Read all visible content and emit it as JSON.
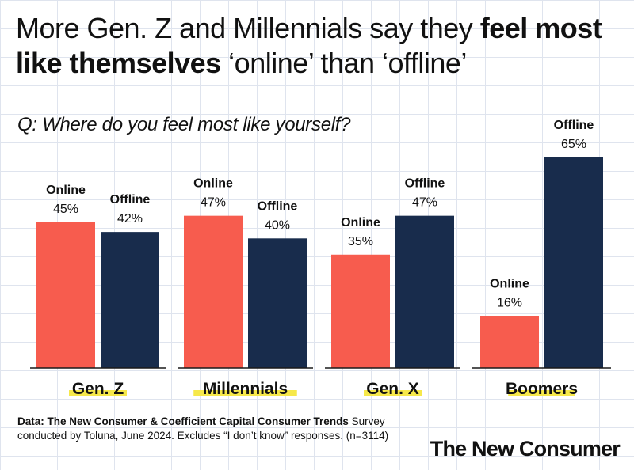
{
  "title": {
    "part1": "More Gen. Z and Millennials say they ",
    "bold1": "feel most like themselves",
    "part2": " ‘online’ than ‘offline’"
  },
  "question": "Q: Where do you feel most like yourself?",
  "footnote": {
    "bold": "Data: The New Consumer & Coefficient Capital Consumer Trends",
    "rest": " Survey conducted by Toluna, June 2024. Excludes “I don’t know” responses. (n=3114)"
  },
  "brand": "The New Consumer",
  "colors": {
    "online": "#F75C4E",
    "offline": "#182C4C",
    "highlight": "#F6E84A"
  },
  "chart_data": {
    "type": "bar",
    "categories": [
      "Gen. Z",
      "Millennials",
      "Gen. X",
      "Boomers"
    ],
    "series": [
      {
        "name": "Online",
        "values": [
          45,
          47,
          35,
          16
        ]
      },
      {
        "name": "Offline",
        "values": [
          42,
          40,
          47,
          65
        ]
      }
    ],
    "value_suffix": "%",
    "ylim": [
      0,
      65
    ]
  }
}
